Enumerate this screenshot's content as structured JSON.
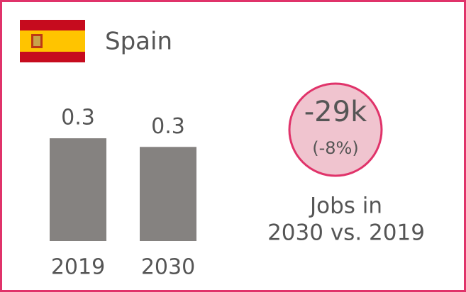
{
  "header": {
    "country": "Spain"
  },
  "chart_data": {
    "type": "bar",
    "categories": [
      "2019",
      "2030"
    ],
    "values": [
      0.345,
      0.316
    ],
    "value_labels": [
      "0.3",
      "0.3"
    ],
    "color": "#858280"
  },
  "callout": {
    "change": "-29k",
    "change_pct": "(-8%)",
    "caption_line1": "Jobs in",
    "caption_line2": "2030 vs. 2019"
  }
}
